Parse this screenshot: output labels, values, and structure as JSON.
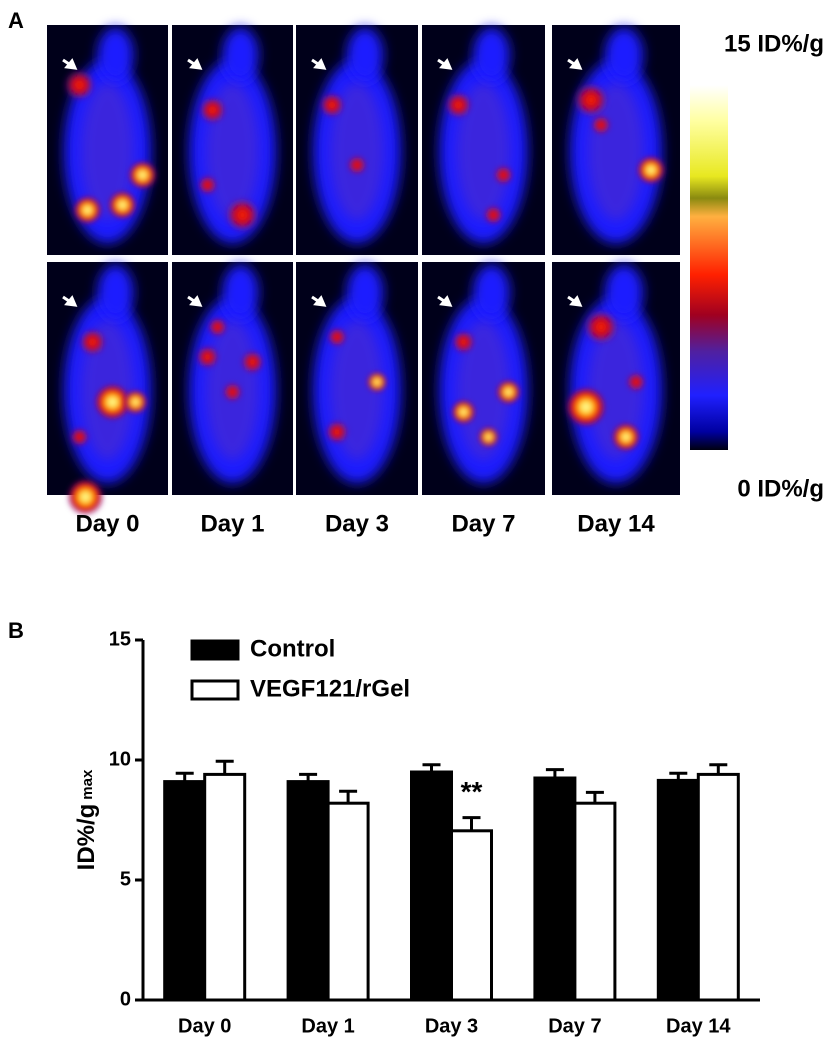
{
  "figure": {
    "panel_labels": [
      "A",
      "B"
    ],
    "panel_a": {
      "colorbar_max_label": "15 ID%/g",
      "colorbar_min_label": "0 ID%/g",
      "columns": [
        "Day 0",
        "Day 1",
        "Day 3",
        "Day 7",
        "Day 14"
      ]
    }
  },
  "chart_data": {
    "type": "bar",
    "y_label": "ID%/g",
    "y_label_subscript": "max",
    "categories": [
      "Day 0",
      "Day 1",
      "Day 3",
      "Day 7",
      "Day 14"
    ],
    "series": [
      {
        "name": "Control",
        "color": "#000000",
        "values": [
          9.1,
          9.1,
          9.5,
          9.25,
          9.15
        ],
        "errors": [
          0.35,
          0.3,
          0.3,
          0.35,
          0.3
        ]
      },
      {
        "name": "VEGF121/rGel",
        "color": "#ffffff",
        "values": [
          9.4,
          8.2,
          7.05,
          8.2,
          9.4
        ],
        "errors": [
          0.55,
          0.5,
          0.55,
          0.45,
          0.4
        ]
      }
    ],
    "annotations": [
      "**"
    ],
    "ylim": [
      0,
      15
    ],
    "yticks": [
      0,
      5,
      10,
      15
    ],
    "legend": "top"
  }
}
